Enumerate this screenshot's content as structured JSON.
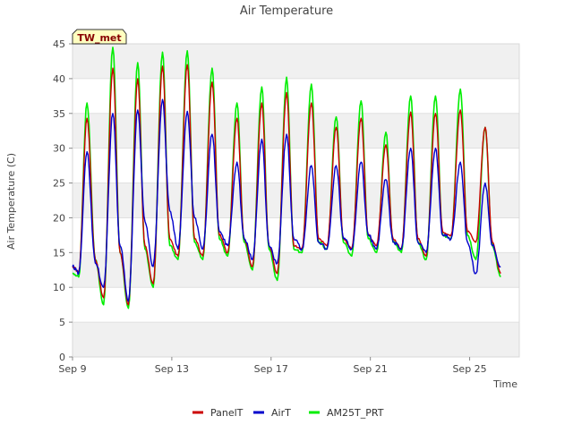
{
  "chart_data": {
    "type": "line",
    "title": "Air Temperature",
    "xlabel": "Time",
    "ylabel": "Air Temperature (C)",
    "station_label": "TW_met",
    "ylim": [
      0,
      45
    ],
    "yticks": [
      0,
      5,
      10,
      15,
      20,
      25,
      30,
      35,
      40,
      45
    ],
    "xlim": [
      "2024-09-09",
      "2024-09-27"
    ],
    "xticks": [
      {
        "date": "2024-09-09",
        "label": "Sep 9"
      },
      {
        "date": "2024-09-13",
        "label": "Sep 13"
      },
      {
        "date": "2024-09-17",
        "label": "Sep 17"
      },
      {
        "date": "2024-09-21",
        "label": "Sep 21"
      },
      {
        "date": "2024-09-25",
        "label": "Sep 25"
      }
    ],
    "grid": "horizontal bands",
    "legend_position": "bottom",
    "series": [
      {
        "name": "PanelT",
        "color": "#cc0000",
        "points": [
          [
            "2024-09-09 00:00",
            13.0
          ],
          [
            "2024-09-09 06:00",
            12.2
          ],
          [
            "2024-09-09 14:00",
            34.3
          ],
          [
            "2024-09-09 22:00",
            14.0
          ],
          [
            "2024-09-10 06:00",
            8.5
          ],
          [
            "2024-09-10 15:00",
            41.5
          ],
          [
            "2024-09-10 22:00",
            15.0
          ],
          [
            "2024-09-11 06:00",
            7.5
          ],
          [
            "2024-09-11 15:00",
            40.0
          ],
          [
            "2024-09-11 22:00",
            16.0
          ],
          [
            "2024-09-12 06:00",
            10.5
          ],
          [
            "2024-09-12 15:00",
            41.8
          ],
          [
            "2024-09-12 22:00",
            17.0
          ],
          [
            "2024-09-13 06:00",
            14.5
          ],
          [
            "2024-09-13 15:00",
            42.0
          ],
          [
            "2024-09-13 22:00",
            17.0
          ],
          [
            "2024-09-14 06:00",
            14.5
          ],
          [
            "2024-09-14 15:00",
            39.5
          ],
          [
            "2024-09-14 22:00",
            17.5
          ],
          [
            "2024-09-15 06:00",
            15.0
          ],
          [
            "2024-09-15 15:00",
            34.3
          ],
          [
            "2024-09-15 22:00",
            17.0
          ],
          [
            "2024-09-16 06:00",
            13.0
          ],
          [
            "2024-09-16 15:00",
            36.5
          ],
          [
            "2024-09-16 22:00",
            16.0
          ],
          [
            "2024-09-17 06:00",
            12.0
          ],
          [
            "2024-09-17 15:00",
            38.0
          ],
          [
            "2024-09-17 22:00",
            16.0
          ],
          [
            "2024-09-18 06:00",
            15.5
          ],
          [
            "2024-09-18 15:00",
            36.5
          ],
          [
            "2024-09-18 22:00",
            17.0
          ],
          [
            "2024-09-19 06:00",
            16.0
          ],
          [
            "2024-09-19 15:00",
            33.0
          ],
          [
            "2024-09-19 22:00",
            17.0
          ],
          [
            "2024-09-20 06:00",
            15.5
          ],
          [
            "2024-09-20 15:00",
            34.3
          ],
          [
            "2024-09-20 22:00",
            17.5
          ],
          [
            "2024-09-21 06:00",
            16.0
          ],
          [
            "2024-09-21 15:00",
            30.5
          ],
          [
            "2024-09-21 22:00",
            17.0
          ],
          [
            "2024-09-22 06:00",
            15.5
          ],
          [
            "2024-09-22 15:00",
            35.2
          ],
          [
            "2024-09-22 22:00",
            17.0
          ],
          [
            "2024-09-23 06:00",
            14.5
          ],
          [
            "2024-09-23 15:00",
            35.0
          ],
          [
            "2024-09-23 22:00",
            18.0
          ],
          [
            "2024-09-24 06:00",
            17.5
          ],
          [
            "2024-09-24 15:00",
            35.5
          ],
          [
            "2024-09-24 22:00",
            18.0
          ],
          [
            "2024-09-25 06:00",
            16.5
          ],
          [
            "2024-09-25 15:00",
            33.0
          ],
          [
            "2024-09-25 22:00",
            16.5
          ],
          [
            "2024-09-26 06:00",
            12.0
          ]
        ]
      },
      {
        "name": "AirT",
        "color": "#0000cc",
        "points": [
          [
            "2024-09-09 00:00",
            13.0
          ],
          [
            "2024-09-09 06:00",
            12.0
          ],
          [
            "2024-09-09 14:00",
            29.5
          ],
          [
            "2024-09-09 22:00",
            13.5
          ],
          [
            "2024-09-10 06:00",
            10.0
          ],
          [
            "2024-09-10 15:00",
            35.0
          ],
          [
            "2024-09-10 22:00",
            16.0
          ],
          [
            "2024-09-11 06:00",
            8.0
          ],
          [
            "2024-09-11 15:00",
            35.5
          ],
          [
            "2024-09-11 22:00",
            19.5
          ],
          [
            "2024-09-12 06:00",
            13.0
          ],
          [
            "2024-09-12 15:00",
            37.0
          ],
          [
            "2024-09-12 22:00",
            21.0
          ],
          [
            "2024-09-13 06:00",
            15.5
          ],
          [
            "2024-09-13 15:00",
            35.3
          ],
          [
            "2024-09-13 22:00",
            20.0
          ],
          [
            "2024-09-14 06:00",
            15.5
          ],
          [
            "2024-09-14 15:00",
            32.0
          ],
          [
            "2024-09-14 22:00",
            18.0
          ],
          [
            "2024-09-15 06:00",
            16.0
          ],
          [
            "2024-09-15 15:00",
            28.0
          ],
          [
            "2024-09-15 22:00",
            17.0
          ],
          [
            "2024-09-16 06:00",
            14.0
          ],
          [
            "2024-09-16 15:00",
            31.3
          ],
          [
            "2024-09-16 22:00",
            16.0
          ],
          [
            "2024-09-17 06:00",
            13.5
          ],
          [
            "2024-09-17 15:00",
            32.0
          ],
          [
            "2024-09-17 22:00",
            17.0
          ],
          [
            "2024-09-18 06:00",
            15.5
          ],
          [
            "2024-09-18 15:00",
            27.5
          ],
          [
            "2024-09-18 22:00",
            16.5
          ],
          [
            "2024-09-19 06:00",
            15.5
          ],
          [
            "2024-09-19 15:00",
            27.5
          ],
          [
            "2024-09-19 22:00",
            17.0
          ],
          [
            "2024-09-20 06:00",
            15.5
          ],
          [
            "2024-09-20 15:00",
            28.0
          ],
          [
            "2024-09-20 22:00",
            17.5
          ],
          [
            "2024-09-21 06:00",
            15.5
          ],
          [
            "2024-09-21 15:00",
            25.5
          ],
          [
            "2024-09-21 22:00",
            16.5
          ],
          [
            "2024-09-22 06:00",
            15.5
          ],
          [
            "2024-09-22 15:00",
            30.0
          ],
          [
            "2024-09-22 22:00",
            16.5
          ],
          [
            "2024-09-23 06:00",
            15.0
          ],
          [
            "2024-09-23 15:00",
            30.0
          ],
          [
            "2024-09-23 22:00",
            17.5
          ],
          [
            "2024-09-24 06:00",
            17.0
          ],
          [
            "2024-09-24 15:00",
            28.0
          ],
          [
            "2024-09-24 22:00",
            16.5
          ],
          [
            "2024-09-25 06:00",
            12.0
          ],
          [
            "2024-09-25 15:00",
            25.0
          ],
          [
            "2024-09-25 22:00",
            16.0
          ],
          [
            "2024-09-26 06:00",
            13.0
          ]
        ]
      },
      {
        "name": "AM25T_PRT",
        "color": "#00ee00",
        "points": [
          [
            "2024-09-09 00:00",
            12.0
          ],
          [
            "2024-09-09 06:00",
            11.5
          ],
          [
            "2024-09-09 14:00",
            36.5
          ],
          [
            "2024-09-09 22:00",
            14.0
          ],
          [
            "2024-09-10 06:00",
            7.5
          ],
          [
            "2024-09-10 15:00",
            44.5
          ],
          [
            "2024-09-10 22:00",
            15.0
          ],
          [
            "2024-09-11 06:00",
            7.0
          ],
          [
            "2024-09-11 15:00",
            42.3
          ],
          [
            "2024-09-11 22:00",
            15.5
          ],
          [
            "2024-09-12 06:00",
            10.0
          ],
          [
            "2024-09-12 15:00",
            43.8
          ],
          [
            "2024-09-12 22:00",
            16.0
          ],
          [
            "2024-09-13 06:00",
            14.0
          ],
          [
            "2024-09-13 15:00",
            44.0
          ],
          [
            "2024-09-13 22:00",
            16.5
          ],
          [
            "2024-09-14 06:00",
            14.0
          ],
          [
            "2024-09-14 15:00",
            41.5
          ],
          [
            "2024-09-14 22:00",
            17.0
          ],
          [
            "2024-09-15 06:00",
            14.5
          ],
          [
            "2024-09-15 15:00",
            36.5
          ],
          [
            "2024-09-15 22:00",
            16.5
          ],
          [
            "2024-09-16 06:00",
            12.5
          ],
          [
            "2024-09-16 15:00",
            38.8
          ],
          [
            "2024-09-16 22:00",
            15.5
          ],
          [
            "2024-09-17 06:00",
            11.0
          ],
          [
            "2024-09-17 15:00",
            40.2
          ],
          [
            "2024-09-17 22:00",
            15.5
          ],
          [
            "2024-09-18 06:00",
            15.0
          ],
          [
            "2024-09-18 15:00",
            39.2
          ],
          [
            "2024-09-18 22:00",
            16.5
          ],
          [
            "2024-09-19 06:00",
            15.5
          ],
          [
            "2024-09-19 15:00",
            34.5
          ],
          [
            "2024-09-19 22:00",
            16.5
          ],
          [
            "2024-09-20 06:00",
            14.5
          ],
          [
            "2024-09-20 15:00",
            36.8
          ],
          [
            "2024-09-20 22:00",
            17.0
          ],
          [
            "2024-09-21 06:00",
            15.0
          ],
          [
            "2024-09-21 15:00",
            32.3
          ],
          [
            "2024-09-21 22:00",
            16.5
          ],
          [
            "2024-09-22 06:00",
            15.0
          ],
          [
            "2024-09-22 15:00",
            37.5
          ],
          [
            "2024-09-22 22:00",
            16.5
          ],
          [
            "2024-09-23 06:00",
            14.0
          ],
          [
            "2024-09-23 15:00",
            37.5
          ],
          [
            "2024-09-23 22:00",
            17.5
          ],
          [
            "2024-09-24 06:00",
            17.0
          ],
          [
            "2024-09-24 15:00",
            38.5
          ],
          [
            "2024-09-24 22:00",
            17.5
          ],
          [
            "2024-09-25 06:00",
            14.0
          ],
          [
            "2024-09-25 15:00",
            33.0
          ],
          [
            "2024-09-25 22:00",
            16.0
          ],
          [
            "2024-09-26 06:00",
            11.5
          ]
        ]
      }
    ]
  }
}
